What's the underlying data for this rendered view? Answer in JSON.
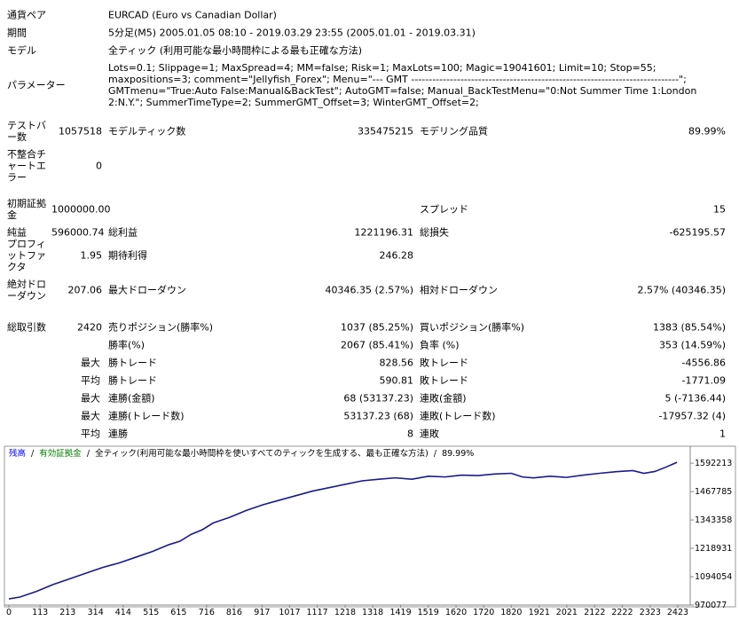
{
  "report": {
    "header": {
      "rows": [
        {
          "label": "通貨ペア",
          "value": "EURCAD (Euro vs Canadian Dollar)"
        },
        {
          "label": "期間",
          "value": "5分足(M5) 2005.01.05 08:10 - 2019.03.29 23:55 (2005.01.01 - 2019.03.31)"
        },
        {
          "label": "モデル",
          "value": "全ティック (利用可能な最小時間枠による最も正確な方法)"
        },
        {
          "label": "パラメーター",
          "value": "Lots=0.1; Slippage=1; MaxSpread=4; MM=false; Risk=1; MaxLots=100; Magic=19041601; Limit=10; Stop=55; maxpositions=3; comment=\"Jellyfish_Forex\"; Menu=\"--- GMT ----------------------------------------------------------------------------\"; GMTmenu=\"True:Auto False:Manual&BackTest\"; AutoGMT=false; Manual_BackTestMenu=\"0:Not Summer Time 1:London 2:N.Y.\"; SummerTimeType=2; SummerGMT_Offset=3; WinterGMT_Offset=2;"
        }
      ]
    },
    "stats": {
      "rows": [
        {
          "label": "テストバー数",
          "value": "1057518",
          "label2": "モデルティック数",
          "value2": "335475215",
          "label3": "モデリング品質",
          "value3": "89.99%"
        },
        {
          "label": "不整合チャートエラー",
          "value": "0"
        },
        {
          "label": "初期証拠金",
          "value": "1000000.00",
          "label3": "スプレッド",
          "value3": "15"
        },
        {
          "label": "純益",
          "value": "596000.74",
          "label2": "総利益",
          "value2": "1221196.31",
          "label3": "総損失",
          "value3": "-625195.57"
        },
        {
          "label": "プロフィットファクタ",
          "value": "1.95",
          "label2": "期待利得",
          "value2": "246.28"
        },
        {
          "label": "絶対ドローダウン",
          "value": "207.06",
          "label2": "最大ドローダウン",
          "value2": "40346.35 (2.57%)",
          "label3": "相対ドローダウン",
          "value3": "2.57% (40346.35)"
        },
        {
          "label": "総取引数",
          "value": "2420",
          "label2": "売りポジション(勝率%)",
          "value2": "1037 (85.25%)",
          "label3": "買いポジション(勝率%)",
          "value3": "1383 (85.54%)"
        },
        {
          "label2": "勝率(%)",
          "value2": "2067 (85.41%)",
          "label3": "負率 (%)",
          "value3": "353 (14.59%)"
        },
        {
          "prefix": "最大",
          "label2": "勝トレード",
          "value2": "828.56",
          "label3": "敗トレード",
          "value3": "-4556.86"
        },
        {
          "prefix": "平均",
          "label2": "勝トレード",
          "value2": "590.81",
          "label3": "敗トレード",
          "value3": "-1771.09"
        },
        {
          "prefix": "最大",
          "label2": "連勝(金額)",
          "value2": "68 (53137.23)",
          "label3": "連敗(金額)",
          "value3": "5 (-7136.44)"
        },
        {
          "prefix": "最大",
          "label2": "連勝(トレード数)",
          "value2": "53137.23 (68)",
          "label3": "連敗(トレード数)",
          "value3": "-17957.32 (4)"
        },
        {
          "prefix": "平均",
          "label2": "連勝",
          "value2": "8",
          "label3": "連敗",
          "value3": "1"
        }
      ]
    }
  },
  "chart_data": {
    "type": "line",
    "separator": "/",
    "equity_label": "有効証拠金",
    "equity_color": "#008000",
    "model_label": "全ティック(利用可能な最小時間枠を使いすべてのティックを生成する、最も正確な方法)",
    "quality": "89.99%",
    "x": [
      0,
      40,
      100,
      160,
      220,
      280,
      340,
      400,
      460,
      520,
      580,
      620,
      660,
      700,
      740,
      800,
      860,
      920,
      980,
      1040,
      1100,
      1160,
      1220,
      1280,
      1340,
      1400,
      1460,
      1520,
      1580,
      1640,
      1700,
      1760,
      1820,
      1860,
      1900,
      1960,
      2020,
      2080,
      2140,
      2200,
      2260,
      2300,
      2340,
      2380,
      2420
    ],
    "series": [
      {
        "name": "残高",
        "color": "#0000ff",
        "line_color": "#1a1a8c",
        "values": [
          997000,
          1005000,
          1030000,
          1060000,
          1085000,
          1110000,
          1135000,
          1155000,
          1180000,
          1205000,
          1235000,
          1250000,
          1280000,
          1300000,
          1330000,
          1355000,
          1385000,
          1410000,
          1430000,
          1450000,
          1470000,
          1485000,
          1500000,
          1515000,
          1522000,
          1528000,
          1522000,
          1535000,
          1532000,
          1540000,
          1538000,
          1545000,
          1548000,
          1532000,
          1528000,
          1535000,
          1530000,
          1540000,
          1548000,
          1555000,
          1560000,
          1548000,
          1556000,
          1575000,
          1596000
        ]
      }
    ],
    "xlim": [
      0,
      2468
    ],
    "xticks": [
      0,
      113,
      213,
      314,
      414,
      515,
      615,
      716,
      816,
      917,
      1017,
      1117,
      1218,
      1318,
      1419,
      1519,
      1620,
      1720,
      1820,
      1921,
      2021,
      2122,
      2222,
      2323,
      2423
    ],
    "ylim": [
      970077,
      1620000
    ],
    "yticks": [
      970077,
      1094054,
      1218931,
      1343358,
      1467785,
      1592213
    ]
  }
}
